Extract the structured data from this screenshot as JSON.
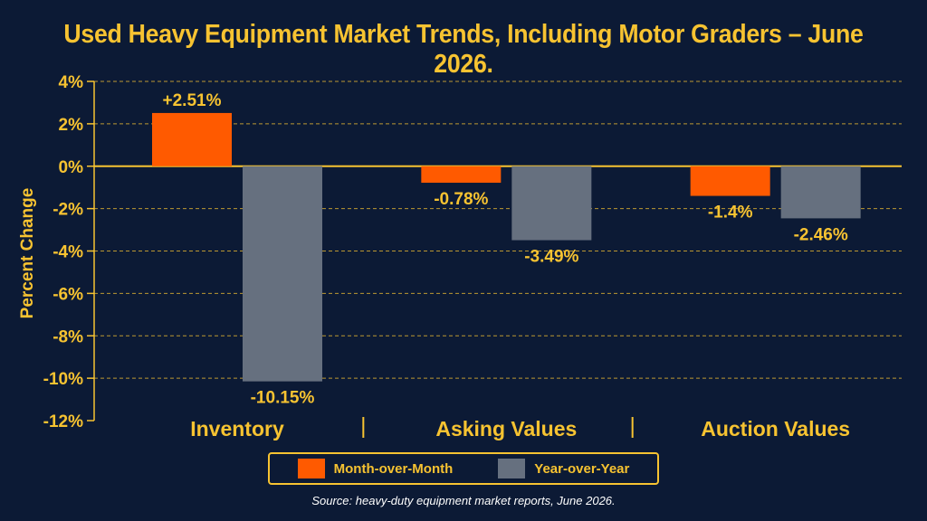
{
  "title": "Used Heavy Equipment Market Trends, Including Motor Graders – June 2026.",
  "source": "Source: heavy-duty equipment market reports, June 2026.",
  "colors": {
    "background": "#0c1a35",
    "accent": "#f7c331",
    "month_over_month": "#ff5a00",
    "year_over_year": "#66707f"
  },
  "chart_data": {
    "type": "bar",
    "categories": [
      "Inventory",
      "Asking Values",
      "Auction Values"
    ],
    "series": [
      {
        "name": "Month-over-Month",
        "values": [
          2.51,
          -0.78,
          -1.4
        ],
        "labels": [
          "+2.51%",
          "-0.78%",
          "-1.4%"
        ]
      },
      {
        "name": "Year-over-Year",
        "values": [
          -10.15,
          -3.49,
          -2.46
        ],
        "labels": [
          "-10.15%",
          "-3.49%",
          "-2.46%"
        ]
      }
    ],
    "ylabel": "Percent Change",
    "xlabel": "",
    "ylim": [
      -12,
      4
    ],
    "yticks": [
      4,
      2,
      0,
      -2,
      -4,
      -6,
      -8,
      -10,
      -12
    ],
    "ytick_labels": [
      "4%",
      "2%",
      "0%",
      "-2%",
      "-4%",
      "-6%",
      "-8%",
      "-10%",
      "-12%"
    ],
    "grid": true,
    "legend_position": "bottom-center"
  }
}
